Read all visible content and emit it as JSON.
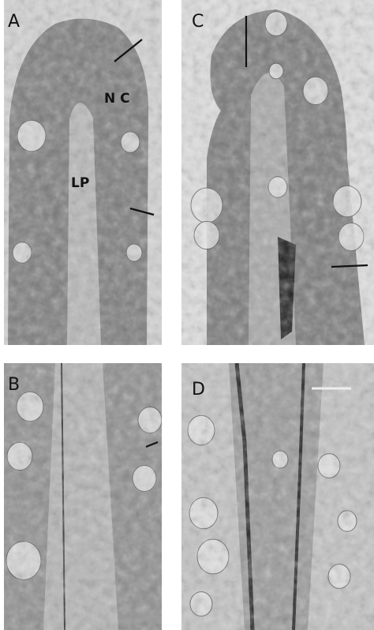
{
  "panels": [
    {
      "label": "A",
      "annotations": [
        "N C",
        "LP"
      ]
    },
    {
      "label": "C"
    },
    {
      "label": "B"
    },
    {
      "label": "D"
    }
  ]
}
